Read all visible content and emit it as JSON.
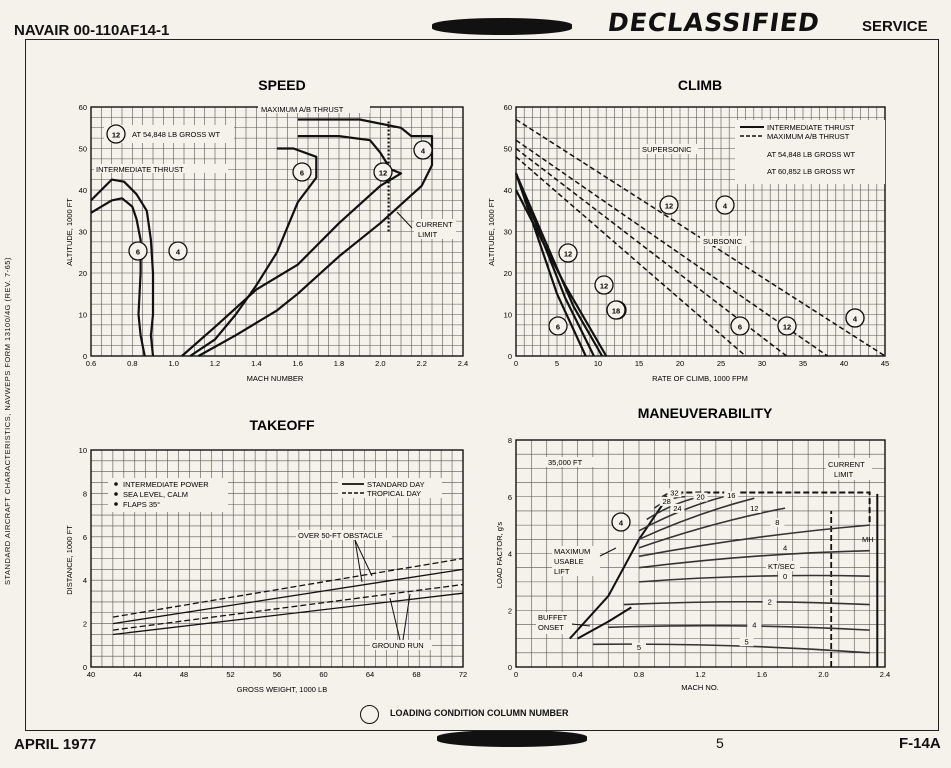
{
  "header": {
    "doc_id": "NAVAIR 00-110AF14-1",
    "stamp": "DECLASSIFIED",
    "section": "SERVICE"
  },
  "footer": {
    "date": "APRIL 1977",
    "page": "5",
    "model": "F-14A"
  },
  "side_note": "STANDARD AIRCRAFT CHARACTERISTICS, NAVWEPS FORM 13100/4G (REV. 7-65)",
  "legend_note": "LOADING CONDITION COLUMN NUMBER",
  "chart_data": [
    {
      "type": "line",
      "title": "SPEED",
      "xlabel": "MACH NUMBER",
      "ylabel": "ALTITUDE, 1000 FT",
      "xlim": [
        0.6,
        2.4
      ],
      "ylim": [
        0,
        60
      ],
      "xticks": [
        "0.6",
        "0.8",
        "1.0",
        "1.2",
        "1.4",
        "1.6",
        "1.8",
        "2.0",
        "2.2",
        "2.4"
      ],
      "yticks": [
        "0",
        "10",
        "20",
        "30",
        "40",
        "50",
        "60"
      ],
      "annotations": [
        "MAXIMUM A/B THRUST",
        "AT 54,848 LB GROSS WT",
        "INTERMEDIATE THRUST",
        "CURRENT",
        "LIMIT"
      ],
      "circle_labels": [
        "12",
        "6",
        "4",
        "12",
        "6",
        "4"
      ],
      "series": [
        {
          "name": "INTERMEDIATE THRUST 6",
          "x": [
            0.86,
            0.84,
            0.83,
            0.84,
            0.84,
            0.82,
            0.8,
            0.75,
            0.7,
            0.6
          ],
          "y": [
            0,
            5,
            10,
            20,
            28,
            33,
            36,
            38,
            37.5,
            34.5
          ]
        },
        {
          "name": "INTERMEDIATE THRUST 4",
          "x": [
            0.9,
            0.89,
            0.9,
            0.9,
            0.89,
            0.87,
            0.82,
            0.76,
            0.7,
            0.6
          ],
          "y": [
            0,
            5,
            10,
            20,
            28,
            35,
            39,
            42,
            42.5,
            37.5
          ]
        },
        {
          "name": "MAXIMUM A/B THRUST 6",
          "x": [
            1.08,
            1.2,
            1.3,
            1.4,
            1.5,
            1.6,
            1.69,
            1.69,
            1.58,
            1.5
          ],
          "y": [
            0,
            4,
            10,
            17,
            25,
            37,
            43,
            48,
            50,
            50
          ]
        },
        {
          "name": "MAXIMUM A/B THRUST 12",
          "x": [
            1.04,
            1.2,
            1.4,
            1.6,
            1.8,
            2.0,
            2.1,
            2.05,
            2.0,
            1.95,
            1.8,
            1.6
          ],
          "y": [
            0,
            7,
            16,
            22,
            32,
            41,
            44,
            45,
            49,
            52,
            53,
            53
          ]
        },
        {
          "name": "MAXIMUM A/B THRUST 4",
          "x": [
            1.12,
            1.3,
            1.5,
            1.6,
            1.8,
            2.0,
            2.2,
            2.25,
            2.25,
            2.15,
            2.1,
            1.9,
            1.8,
            1.6
          ],
          "y": [
            0,
            5,
            11,
            15,
            24,
            32,
            41,
            46,
            53,
            53,
            55,
            57,
            57,
            57
          ]
        },
        {
          "name": "CURRENT LIMIT",
          "x": [
            2.04,
            2.04
          ],
          "y": [
            30,
            57
          ]
        }
      ]
    },
    {
      "type": "line",
      "title": "CLIMB",
      "xlabel": "RATE OF CLIMB, 1000 FPM",
      "ylabel": "ALTITUDE, 1000 FT",
      "xlim": [
        0,
        45
      ],
      "ylim": [
        0,
        60
      ],
      "xticks": [
        "0",
        "5",
        "10",
        "15",
        "20",
        "25",
        "30",
        "35",
        "40",
        "45"
      ],
      "yticks": [
        "0",
        "10",
        "20",
        "30",
        "40",
        "50",
        "60"
      ],
      "legend": [
        "INTERMEDIATE THRUST",
        "MAXIMUM A/B THRUST",
        "AT 54,848 LB GROSS WT",
        "AT 60,852 LB GROSS WT"
      ],
      "annotations": [
        "SUPERSONIC",
        "SUBSONIC"
      ],
      "circle_labels": [
        "12",
        "18",
        "4",
        "12",
        "4",
        "12",
        "18",
        "6",
        "6",
        "12",
        "4"
      ],
      "series": [
        {
          "name": "INTERMEDIATE 6",
          "x": [
            0,
            5,
            8.5
          ],
          "y": [
            44,
            15,
            0
          ]
        },
        {
          "name": "INTERMEDIATE 12",
          "x": [
            0,
            6,
            9.5
          ],
          "y": [
            44,
            14,
            0
          ]
        },
        {
          "name": "INTERMEDIATE 18",
          "x": [
            0,
            7,
            10.5
          ],
          "y": [
            44,
            12,
            0
          ]
        },
        {
          "name": "INTERMEDIATE 4",
          "x": [
            0,
            6,
            11
          ],
          "y": [
            40,
            17,
            0
          ]
        },
        {
          "name": "MAX A/B 6",
          "x": [
            0,
            28
          ],
          "y": [
            48,
            0
          ]
        },
        {
          "name": "MAX A/B 12",
          "x": [
            0,
            33
          ],
          "y": [
            50,
            0
          ]
        },
        {
          "name": "MAX A/B 18",
          "x": [
            0,
            38
          ],
          "y": [
            52,
            0
          ]
        },
        {
          "name": "MAX A/B 4",
          "x": [
            0,
            45
          ],
          "y": [
            57,
            0
          ]
        }
      ]
    },
    {
      "type": "line",
      "title": "TAKEOFF",
      "xlabel": "GROSS WEIGHT, 1000 LB",
      "ylabel": "DISTANCE, 1000 FT",
      "xlim": [
        40,
        74
      ],
      "ylim": [
        0,
        10
      ],
      "xticks": [
        "40",
        "44",
        "48",
        "52",
        "56",
        "60",
        "64",
        "68",
        "72"
      ],
      "yticks": [
        "0",
        "2",
        "4",
        "6",
        "8",
        "10"
      ],
      "notes": [
        "INTERMEDIATE POWER",
        "SEA LEVEL, CALM",
        "FLAPS 35°"
      ],
      "legend": [
        "STANDARD DAY",
        "TROPICAL DAY"
      ],
      "annotations": [
        "OVER 50-FT OBSTACLE",
        "GROUND RUN"
      ],
      "series": [
        {
          "name": "OVER 50-FT OBSTACLE STANDARD DAY",
          "x": [
            42,
            74
          ],
          "y": [
            2.0,
            4.5
          ]
        },
        {
          "name": "OVER 50-FT OBSTACLE TROPICAL DAY",
          "x": [
            42,
            74
          ],
          "y": [
            2.3,
            5.0
          ]
        },
        {
          "name": "GROUND RUN STANDARD DAY",
          "x": [
            42,
            74
          ],
          "y": [
            1.5,
            3.4
          ]
        },
        {
          "name": "GROUND RUN TROPICAL DAY",
          "x": [
            42,
            74
          ],
          "y": [
            1.7,
            3.8
          ]
        }
      ]
    },
    {
      "type": "line",
      "title": "MANEUVERABILITY",
      "xlabel": "MACH NO.",
      "ylabel": "LOAD FACTOR, g's",
      "xlim": [
        0,
        2.4
      ],
      "ylim": [
        0,
        8
      ],
      "xticks": [
        "0",
        "0.4",
        "0.8",
        "1.2",
        "1.6",
        "2.0",
        "2.4"
      ],
      "yticks": [
        "0",
        "2",
        "4",
        "6",
        "8"
      ],
      "annotations": [
        "35,000 FT",
        "CURRENT",
        "LIMIT",
        "MAXIMUM",
        "USABLE",
        "LIFT",
        "BUFFET",
        "ONSET",
        "KT/SEC",
        "MH"
      ],
      "contour_labels": [
        "32",
        "28",
        "24",
        "20",
        "16",
        "12",
        "8",
        "4",
        "0",
        "2",
        "4",
        "5",
        "5"
      ],
      "circle_labels": [
        "4"
      ],
      "series": [
        {
          "name": "MAXIMUM USABLE LIFT",
          "x": [
            0.35,
            0.6,
            0.8,
            1.0
          ],
          "y": [
            1.0,
            2.5,
            4.5,
            6.1
          ]
        },
        {
          "name": "BUFFET ONSET",
          "x": [
            0.4,
            0.6,
            0.75
          ],
          "y": [
            1.0,
            1.6,
            2.1
          ]
        },
        {
          "name": "CURRENT LIMIT",
          "x": [
            2.05,
            2.05
          ],
          "y": [
            0,
            5.5
          ]
        },
        {
          "name": "MH",
          "x": [
            2.35,
            2.35
          ],
          "y": [
            0,
            6.1
          ]
        }
      ]
    }
  ]
}
